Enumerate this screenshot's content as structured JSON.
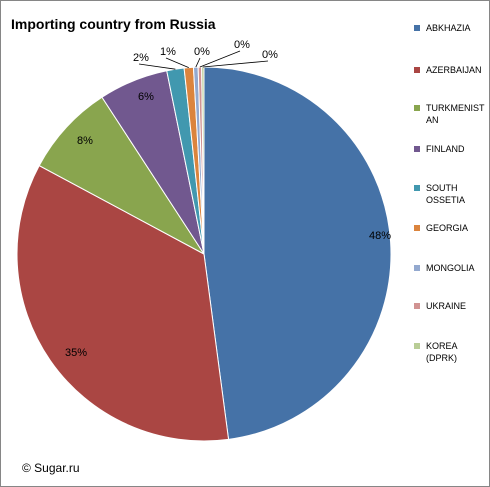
{
  "title": "Importing country from Russia",
  "copyright": "© Sugar.ru",
  "chart_data": {
    "type": "pie",
    "title": "Importing country from Russia",
    "slices": [
      {
        "label": "ABKHAZIA",
        "value": 48,
        "display": "48%",
        "color": "#4572A7"
      },
      {
        "label": "AZERBAIJAN",
        "value": 35,
        "display": "35%",
        "color": "#AA4643"
      },
      {
        "label": "TURKMENISTAN",
        "value": 8,
        "display": "8%",
        "color": "#89A54E"
      },
      {
        "label": "FINLAND",
        "value": 6,
        "display": "6%",
        "color": "#71588F"
      },
      {
        "label": "SOUTH OSSETIA",
        "value": 1.5,
        "display": "2%",
        "color": "#4198AF"
      },
      {
        "label": "GEORGIA",
        "value": 0.8,
        "display": "1%",
        "color": "#DB843D"
      },
      {
        "label": "MONGOLIA",
        "value": 0.4,
        "display": "0%",
        "color": "#93A9CF"
      },
      {
        "label": "UKRAINE",
        "value": 0.3,
        "display": "0%",
        "color": "#D19392"
      },
      {
        "label": "KOREA (DPRK)",
        "value": 0.2,
        "display": "0%",
        "color": "#B9CD96"
      }
    ],
    "legend_position": "right"
  },
  "legend": [
    {
      "label": "ABKHAZIA",
      "color": "#4572A7"
    },
    {
      "label": "AZERBAIJAN",
      "color": "#AA4643"
    },
    {
      "label": "TURKMENISTAN",
      "color": "#89A54E"
    },
    {
      "label": "FINLAND",
      "color": "#71588F"
    },
    {
      "label": "SOUTH OSSETIA",
      "color": "#4198AF"
    },
    {
      "label": "GEORGIA",
      "color": "#DB843D"
    },
    {
      "label": "MONGOLIA",
      "color": "#93A9CF"
    },
    {
      "label": "UKRAINE",
      "color": "#D19392"
    },
    {
      "label": "KOREA (DPRK)",
      "color": "#B9CD96"
    }
  ]
}
